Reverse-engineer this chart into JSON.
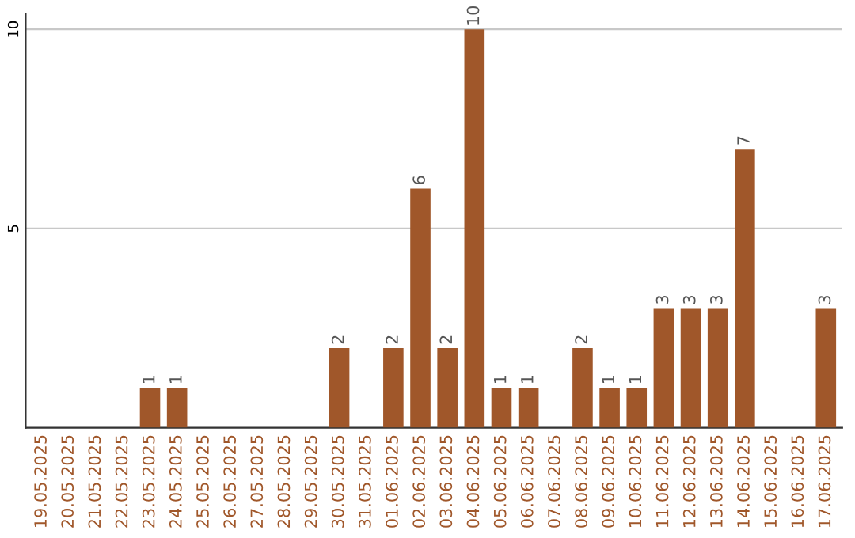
{
  "chart_data": {
    "type": "bar",
    "categories": [
      "19.05.2025",
      "20.05.2025",
      "21.05.2025",
      "22.05.2025",
      "23.05.2025",
      "24.05.2025",
      "25.05.2025",
      "26.05.2025",
      "27.05.2025",
      "28.05.2025",
      "29.05.2025",
      "30.05.2025",
      "31.05.2025",
      "01.06.2025",
      "02.06.2025",
      "03.06.2025",
      "04.06.2025",
      "05.06.2025",
      "06.06.2025",
      "07.06.2025",
      "08.06.2025",
      "09.06.2025",
      "10.06.2025",
      "11.06.2025",
      "12.06.2025",
      "13.06.2025",
      "14.06.2025",
      "15.06.2025",
      "16.06.2025",
      "17.06.2025"
    ],
    "values": [
      0,
      0,
      0,
      0,
      1,
      1,
      0,
      0,
      0,
      0,
      0,
      2,
      0,
      2,
      6,
      2,
      10,
      1,
      1,
      0,
      2,
      1,
      1,
      3,
      3,
      3,
      7,
      0,
      0,
      3
    ],
    "value_labels": [
      null,
      null,
      null,
      null,
      "1",
      "1",
      null,
      null,
      null,
      null,
      null,
      "2",
      null,
      "2",
      "6",
      "2",
      "10",
      "1",
      "1",
      null,
      "2",
      "1",
      "1",
      "3",
      "3",
      "3",
      "7",
      null,
      null,
      "3"
    ],
    "color": "#a0572a",
    "ylim": [
      0,
      10.4
    ],
    "yticks": [
      5,
      10
    ],
    "grid": "y",
    "legend": false
  }
}
